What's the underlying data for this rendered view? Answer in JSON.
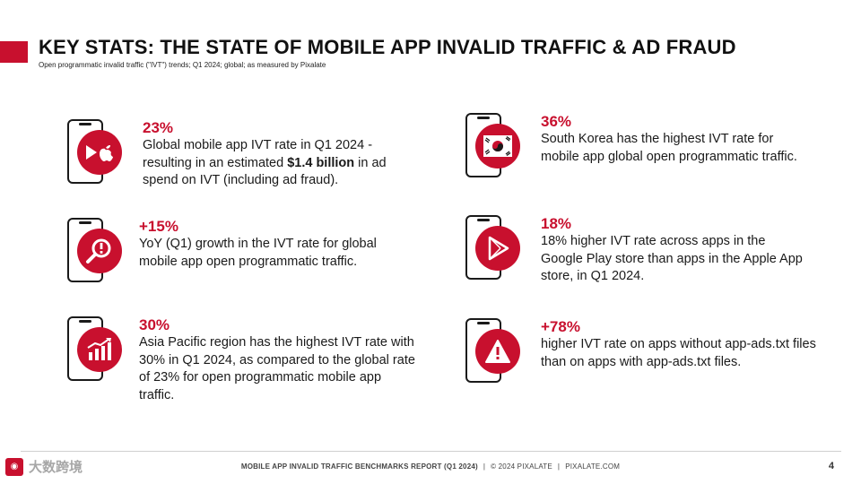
{
  "header": {
    "title": "KEY STATS: THE STATE OF MOBILE APP INVALID TRAFFIC & AD FRAUD",
    "subtitle": "Open programmatic invalid traffic (\"IVT\") trends; Q1 2024; global; as measured by Pixalate"
  },
  "stats": [
    {
      "value": "23%",
      "desc_before": "Global mobile app IVT rate in Q1 2024 - resulting in an estimated ",
      "desc_bold": "$1.4 billion",
      "desc_after": " in ad spend on IVT (including ad fraud).",
      "icon": "play-apple-icon"
    },
    {
      "value": "+15%",
      "desc": "YoY (Q1) growth in the IVT rate for global mobile app open programmatic traffic.",
      "icon": "magnifier-alert-icon"
    },
    {
      "value": "30%",
      "desc": "Asia Pacific region has the highest IVT rate with 30% in Q1 2024, as compared to the global rate of 23% for open programmatic mobile app traffic.",
      "icon": "growth-chart-icon"
    },
    {
      "value": "36%",
      "desc": "South Korea has the highest IVT rate for mobile app global open programmatic traffic.",
      "icon": "south-korea-flag-icon"
    },
    {
      "value": "18%",
      "desc": "18% higher IVT rate across apps in the Google Play store than apps in the Apple App store, in Q1 2024.",
      "icon": "google-play-icon"
    },
    {
      "value": "+78%",
      "desc": "higher IVT rate on apps without app-ads.txt files than on apps with app-ads.txt files.",
      "icon": "warning-triangle-icon"
    }
  ],
  "footer": {
    "report": "MOBILE APP INVALID TRAFFIC BENCHMARKS REPORT (Q1 2024)",
    "separator": "|",
    "copyright": "© 2024 PIXALATE",
    "website": "PIXALATE.COM",
    "page_number": "4"
  },
  "watermark": {
    "text": "大数跨境"
  },
  "colors": {
    "accent": "#c8102e",
    "text": "#1a1a1a"
  }
}
